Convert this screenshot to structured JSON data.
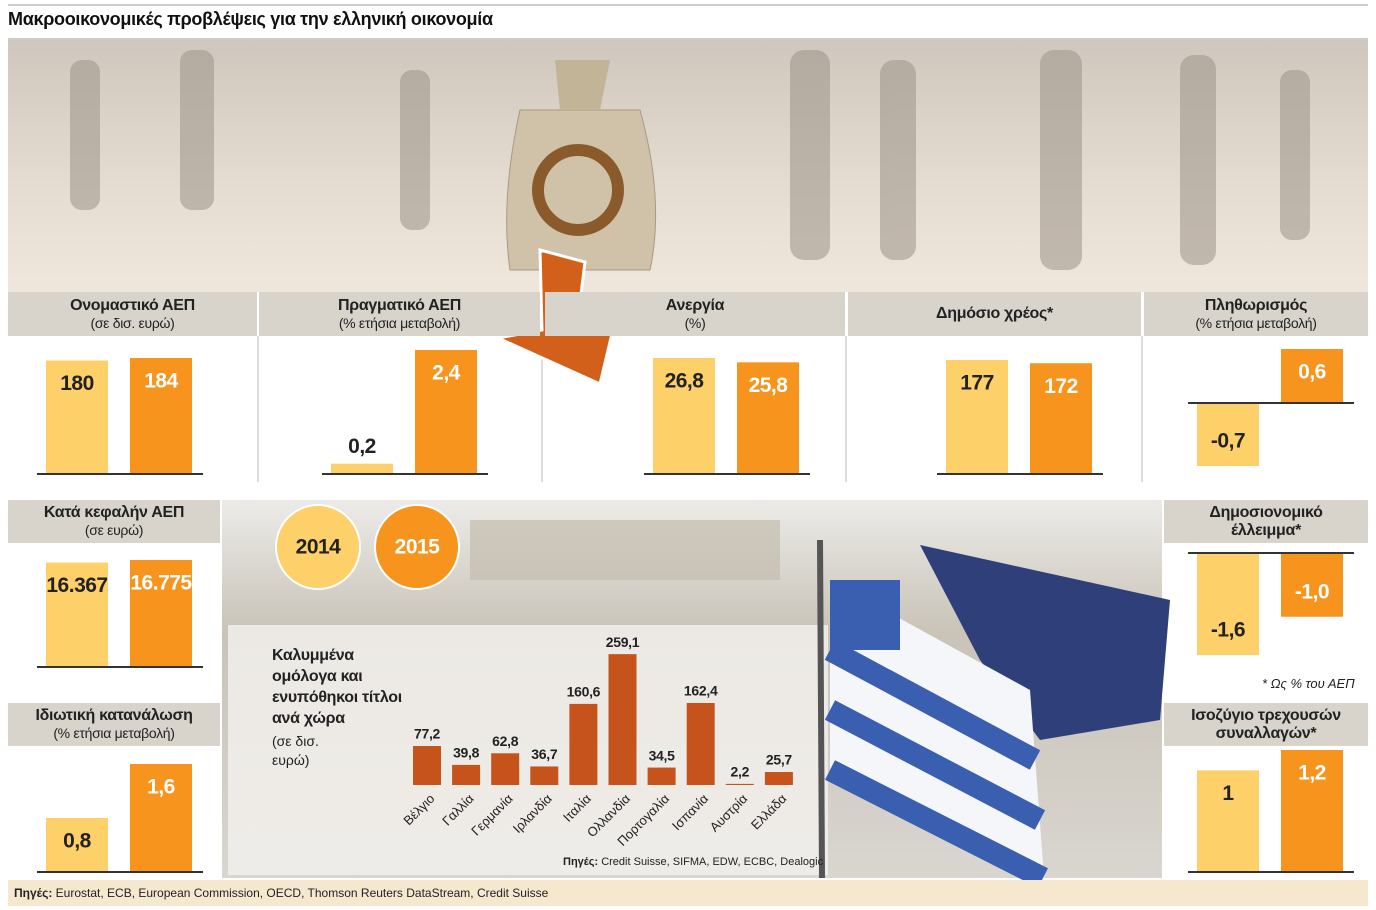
{
  "title": "Μακροοικονομικές προβλέψεις για την ελληνική οικονομία",
  "legend": [
    {
      "label": "2014",
      "color": "#fdd06a"
    },
    {
      "label": "2015",
      "color": "#f7941d"
    }
  ],
  "chart_data": [
    {
      "type": "bar",
      "title": "Ονομαστικό ΑΕΠ",
      "subtitle": "(σε δισ. ευρώ)",
      "values": [
        180,
        184
      ]
    },
    {
      "type": "bar",
      "title": "Πραγματικό  ΑΕΠ",
      "subtitle": "(% ετήσια μεταβολή)",
      "values": [
        0.2,
        2.4
      ],
      "value_labels": [
        "0,2",
        "2,4"
      ]
    },
    {
      "type": "bar",
      "title": "Ανεργία",
      "subtitle": "(%)",
      "values": [
        26.8,
        25.8
      ],
      "value_labels": [
        "26,8",
        "25,8"
      ]
    },
    {
      "type": "bar",
      "title": "Δημόσιο χρέος*",
      "values": [
        177,
        172
      ]
    },
    {
      "type": "bar",
      "title": "Πληθωρισμός",
      "subtitle": "(% ετήσια μεταβολή)",
      "values": [
        -0.7,
        0.6
      ],
      "value_labels": [
        "-0,7",
        "0,6"
      ]
    },
    {
      "type": "bar",
      "title": "Κατά κεφαλήν ΑΕΠ",
      "subtitle": "(σε ευρώ)",
      "values": [
        16367,
        16775
      ],
      "value_labels": [
        "16.367",
        "16.775"
      ]
    },
    {
      "type": "bar",
      "title": "Δημοσιονομικό έλλειμμα*",
      "values": [
        -1.6,
        -1.0
      ],
      "value_labels": [
        "-1,6",
        "-1,0"
      ]
    },
    {
      "type": "bar",
      "title": "Ιδιωτική κατανάλωση",
      "subtitle": "(% ετήσια μεταβολή)",
      "values": [
        0.8,
        1.6
      ],
      "value_labels": [
        "0,8",
        "1,6"
      ]
    },
    {
      "type": "bar",
      "title": "Ισοζύγιο τρεχουσών συναλλαγών*",
      "values": [
        1,
        1.2
      ],
      "value_labels": [
        "1",
        "1,2"
      ]
    },
    {
      "type": "bar",
      "title": "Καλυμμένα ομόλογα και ενυπόθηκοι τίτλοι ανά χώρα",
      "subtitle": "(σε δισ. ευρώ)",
      "categories": [
        "Βέλγιο",
        "Γαλλία",
        "Γερμανία",
        "Ιρλανδία",
        "Ιταλία",
        "Ολλανδία",
        "Πορτογαλία",
        "Ισπανία",
        "Αυστρία",
        "Ελλάδα"
      ],
      "values": [
        77.2,
        39.8,
        62.8,
        36.7,
        160.6,
        259.1,
        34.5,
        162.4,
        2.2,
        25.7
      ],
      "value_labels": [
        "77,2",
        "39,8",
        "62,8",
        "36,7",
        "160,6",
        "259,1",
        "34,5",
        "162,4",
        "2,2",
        "25,7"
      ],
      "color": "#c5531b",
      "source_label": "Πηγές:",
      "source": "Credit Suisse, SIFMA, EDW, ECBC, Dealogic"
    }
  ],
  "footnote": "* Ως % του ΑΕΠ",
  "source_label": "Πηγές:",
  "source": "Eurostat, ECB, European Commission, OECD, Thomson Reuters DataStream, Credit Suisse"
}
